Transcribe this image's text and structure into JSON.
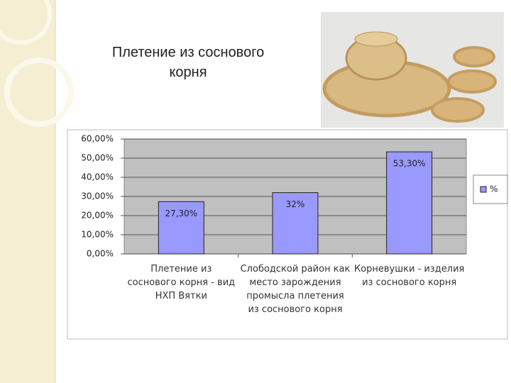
{
  "chart_data": {
    "type": "bar",
    "title": "Плетение из соснового корня",
    "categories": [
      "Плетение из соснового корня - вид НХП Вятки",
      "Слободской район как место зарождения промысла плетения из соснового корня",
      "Корневушки - изделия из соснового корня"
    ],
    "series": [
      {
        "name": "%",
        "color": "#9999ff",
        "values": [
          27.3,
          32,
          53.3
        ],
        "value_labels": [
          "27,30%",
          "32%",
          "53,30%"
        ]
      }
    ],
    "ylim": [
      0,
      60
    ],
    "yticks": [
      {
        "value": 0,
        "label": "0,00%"
      },
      {
        "value": 10,
        "label": "10,00%"
      },
      {
        "value": 20,
        "label": "20,00%"
      },
      {
        "value": 30,
        "label": "30,00%"
      },
      {
        "value": 40,
        "label": "40,00%"
      },
      {
        "value": 50,
        "label": "50,00%"
      },
      {
        "value": 60,
        "label": "60,00%"
      }
    ],
    "grid": true,
    "legend": "right"
  }
}
